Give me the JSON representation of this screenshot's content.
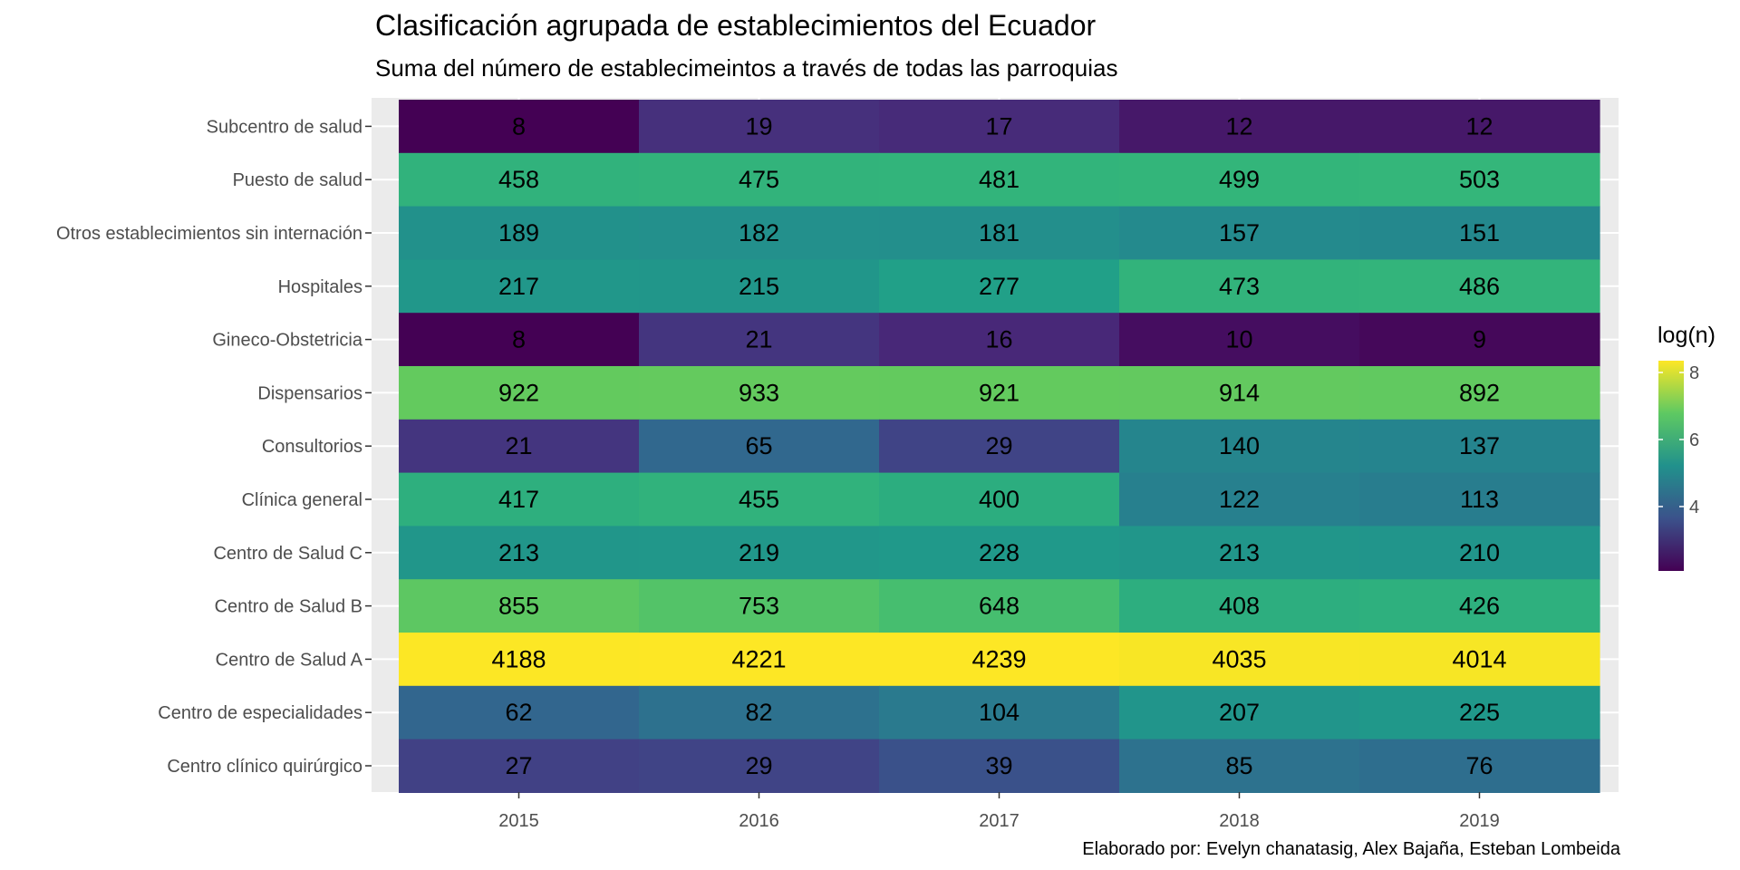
{
  "chart_data": {
    "type": "heatmap",
    "title": "Clasificación agrupada de establecimientos del Ecuador",
    "subtitle": "Suma del número de establecimeintos a través de todas las parroquias",
    "caption": "Elaborado por: Evelyn chanatasig, Alex Bajaña, Esteban Lombeida",
    "xlabel": "",
    "ylabel": "",
    "x": [
      "2015",
      "2016",
      "2017",
      "2018",
      "2019"
    ],
    "y": [
      "Subcentro de salud",
      "Puesto de salud",
      "Otros establecimientos sin internación",
      "Hospitales",
      "Gineco-Obstetricia",
      "Dispensarios",
      "Consultorios",
      "Clínica general",
      "Centro de Salud C",
      "Centro de Salud B",
      "Centro de Salud A",
      "Centro de especialidades",
      "Centro clínico quirúrgico"
    ],
    "values": [
      [
        8,
        19,
        17,
        12,
        12
      ],
      [
        458,
        475,
        481,
        499,
        503
      ],
      [
        189,
        182,
        181,
        157,
        151
      ],
      [
        217,
        215,
        277,
        473,
        486
      ],
      [
        8,
        21,
        16,
        10,
        9
      ],
      [
        922,
        933,
        921,
        914,
        892
      ],
      [
        21,
        65,
        29,
        140,
        137
      ],
      [
        417,
        455,
        400,
        122,
        113
      ],
      [
        213,
        219,
        228,
        213,
        210
      ],
      [
        855,
        753,
        648,
        408,
        426
      ],
      [
        4188,
        4221,
        4239,
        4035,
        4014
      ],
      [
        62,
        82,
        104,
        207,
        225
      ],
      [
        27,
        29,
        39,
        85,
        76
      ]
    ],
    "fill": "log(n)",
    "color_scale": "viridis",
    "legend": {
      "title": "log(n)",
      "position": "right",
      "ticks": [
        4,
        6,
        8
      ],
      "range": [
        2.079,
        8.352
      ]
    },
    "grid": true,
    "panel_background": "#EBEBEB"
  }
}
